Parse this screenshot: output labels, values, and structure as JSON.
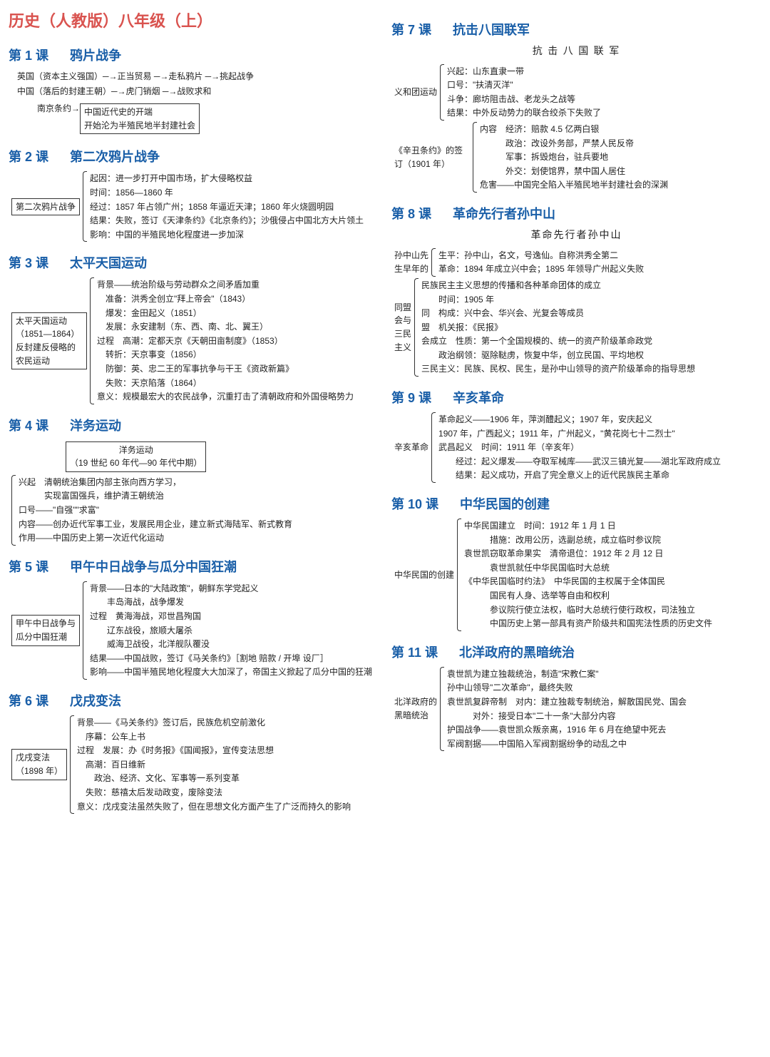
{
  "main_title": "历史（人教版）八年级（上）",
  "left": [
    {
      "num": "第 1 课",
      "name": "鸦片战争",
      "flow": [
        "英国（资本主义强国）─→正当贸易 ─→走私鸦片 ─→挑起战争",
        "中国（落后的封建王朝）─→虎门销烟 ─→战败求和"
      ],
      "box_label": "南京条约→",
      "box_body": [
        "中国近代史的开端",
        "开始沦为半殖民地半封建社会"
      ]
    },
    {
      "num": "第 2 课",
      "name": "第二次鸦片战争",
      "box_label": "第二次鸦片战争",
      "lines": [
        "起因：进一步打开中国市场，扩大侵略权益",
        "时间：1856—1860 年",
        "经过：1857 年占领广州；1858 年逼近天津；1860 年火烧圆明园",
        "结果：失败，签订《天津条约》《北京条约》；沙俄侵占中国北方大片领土",
        "影响：中国的半殖民地化程度进一步加深"
      ]
    },
    {
      "num": "第 3 课",
      "name": "太平天国运动",
      "box_label": "太平天国运动（1851—1864）\n反封建反侵略的农民运动",
      "lines": [
        "背景——统治阶级与劳动群众之间矛盾加重",
        "　准备：洪秀全创立\"拜上帝会\"（1843）",
        "　爆发：金田起义（1851）",
        "　发展：永安建制（东、西、南、北、翼王）",
        "过程　高潮：定都天京《天朝田亩制度》（1853）",
        "　转折：天京事变（1856）",
        "　防御：英、忠二王的军事抗争与干王《资政新篇》",
        "　失败：天京陷落（1864）",
        "意义：规模最宏大的农民战争，沉重打击了清朝政府和外国侵略势力"
      ]
    },
    {
      "num": "第 4 课",
      "name": "洋务运动",
      "box_body": [
        "洋务运动",
        "（19 世纪 60 年代—90 年代中期）"
      ],
      "lines": [
        "兴起　清朝统治集团内部主张向西方学习，",
        "　　　实现富国强兵，维护清王朝统治",
        "口号——\"自强\"\"求富\"",
        "内容——创办近代军事工业，发展民用企业，建立新式海陆军、新式教育",
        "作用——中国历史上第一次近代化运动"
      ]
    },
    {
      "num": "第 5 课",
      "name": "甲午中日战争与瓜分中国狂潮",
      "box_label": "甲午中日战争与\n瓜分中国狂潮",
      "lines": [
        "背景——日本的\"大陆政策\"，朝鲜东学党起义",
        "　　丰岛海战，战争爆发",
        "过程　黄海海战，邓世昌殉国",
        "　　辽东战役，旅顺大屠杀",
        "　　威海卫战役，北洋舰队覆没",
        "结果——中国战败，签订《马关条约》［割地 赔款 / 开埠 设厂］",
        "影响——中国半殖民地化程度大大加深了，帝国主义掀起了瓜分中国的狂潮"
      ]
    },
    {
      "num": "第 6 课",
      "name": "戊戌变法",
      "box_label": "戊戌变法\n（1898 年）",
      "lines": [
        "背景——《马关条约》签订后，民族危机空前激化",
        "　序幕：公车上书",
        "过程　发展：办《时务报》《国闻报》，宣传变法思想",
        "　高潮：百日维新",
        "　　政治、经济、文化、军事等一系列变革",
        "　失败：慈禧太后发动政变，废除变法",
        "意义：戊戌变法虽然失败了，但在思想文化方面产生了广泛而持久的影响"
      ]
    }
  ],
  "right": [
    {
      "num": "第 7 课",
      "name": "抗击八国联军",
      "subtitle": "抗 击 八 国 联 军",
      "groups": [
        {
          "label": "义和团运动",
          "lines": [
            "兴起：山东直隶一带",
            "口号：\"扶清灭洋\"",
            "斗争：廊坊阻击战、老龙头之战等",
            "结果：中外反动势力的联合绞杀下失败了"
          ]
        },
        {
          "label": "《辛丑条约》的签订（1901 年）",
          "lines": [
            "内容　经济：赔款 4.5 亿两白银",
            "　　　政治：改设外务部，严禁人民反帝",
            "　　　军事：拆毁炮台，驻兵要地",
            "　　　外交：划使馆界，禁中国人居住",
            "危害——中国完全陷入半殖民地半封建社会的深渊"
          ]
        }
      ]
    },
    {
      "num": "第 8 课",
      "name": "革命先行者孙中山",
      "subtitle": "革命先行者孙中山",
      "groups": [
        {
          "label": "孙中山先\n生早年的",
          "lines": [
            "生平：孙中山，名文，号逸仙。自称洪秀全第二",
            "革命：1894 年成立兴中会；1895 年领导广州起义失败"
          ]
        },
        {
          "label": "同盟\n会与\n三民\n主义",
          "lines": [
            "民族民主主义思想的传播和各种革命团体的成立",
            "　　时间：1905 年",
            "同　构成：兴中会、华兴会、光复会等成员",
            "盟　机关报：《民报》",
            "会成立　性质：第一个全国规模的、统一的资产阶级革命政党",
            "　　政治纲领：驱除鞑虏，恢复中华，创立民国、平均地权",
            "三民主义：民族、民权、民生，是孙中山领导的资产阶级革命的指导思想"
          ]
        }
      ]
    },
    {
      "num": "第 9 课",
      "name": "辛亥革命",
      "groups": [
        {
          "label": "辛亥革命",
          "lines": [
            "革命起义——1906 年，萍浏醴起义；1907 年，安庆起义",
            "1907 年，广西起义；1911 年，广州起义，\"黄花岗七十二烈士\"",
            "武昌起义　时间：1911 年（辛亥年）",
            "　　经过：起义爆发——夺取军械库——武汉三镇光复——湖北军政府成立",
            "　　结果：起义成功，开启了完全意义上的近代民族民主革命"
          ]
        }
      ]
    },
    {
      "num": "第 10 课",
      "name": "中华民国的创建",
      "groups": [
        {
          "label": "中华民国的创建",
          "lines": [
            "中华民国建立　时间：1912 年 1 月 1 日",
            "　　　措施：改用公历，选副总统，成立临时参议院",
            "袁世凯窃取革命果实　清帝退位：1912 年 2 月 12 日",
            "　　　袁世凯就任中华民国临时大总统",
            "《中华民国临时约法》　中华民国的主权属于全体国民",
            "　　　国民有人身、选举等自由和权利",
            "　　　参议院行使立法权，临时大总统行使行政权，司法独立",
            "　　　中国历史上第一部具有资产阶级共和国宪法性质的历史文件"
          ]
        }
      ]
    },
    {
      "num": "第 11 课",
      "name": "北洋政府的黑暗统治",
      "groups": [
        {
          "label": "北洋政府的\n黑暗统治",
          "lines": [
            "袁世凯为建立独裁统治，制造\"宋教仁案\"",
            "孙中山领导\"二次革命\"，最终失败",
            "袁世凯复辟帝制　对内：建立独裁专制统治，解散国民党、国会",
            "　　　对外：接受日本\"二十一条\"大部分内容",
            "护国战争——袁世凯众叛亲离，1916 年 6 月在绝望中死去",
            "军阀割据——中国陷入军阀割据纷争的动乱之中"
          ]
        }
      ]
    }
  ]
}
